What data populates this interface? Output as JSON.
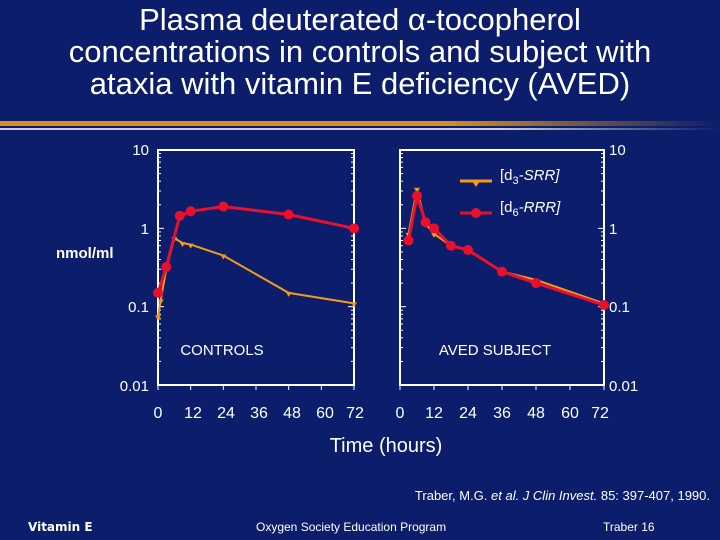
{
  "title": {
    "line1_pre": "Plasma deuterated ",
    "alpha": "α",
    "line1_post": "-tocopherol",
    "line2": "concentrations in controls and subject with",
    "line3": "ataxia with vitamin E deficiency (AVED)"
  },
  "chart_data": [
    {
      "type": "line",
      "panel": "CONTROLS",
      "panel_label": "CONTROLS",
      "xlabel": "Time (hours)",
      "ylabel": "nmol/ml",
      "yscale": "log",
      "ylim": [
        0.01,
        10
      ],
      "xlim": [
        0,
        72
      ],
      "x_ticks": [
        "0",
        "12",
        "24",
        "36",
        "48",
        "60",
        "72"
      ],
      "y_ticks": [
        "10",
        "1",
        "0.1",
        "0.01"
      ],
      "series": [
        {
          "name": "[d3-SRR]",
          "color": "#f29b1c",
          "points": [
            [
              0,
              0.075
            ],
            [
              1,
              0.12
            ],
            [
              3,
              0.3
            ],
            [
              6,
              0.75
            ],
            [
              9,
              0.65
            ],
            [
              12,
              0.62
            ],
            [
              24,
              0.45
            ],
            [
              48,
              0.15
            ],
            [
              72,
              0.11
            ]
          ]
        },
        {
          "name": "[d6-RRR]",
          "color": "#e8102d",
          "points": [
            [
              0,
              0.15
            ],
            [
              3,
              0.32
            ],
            [
              8,
              1.45
            ],
            [
              12,
              1.65
            ],
            [
              24,
              1.9
            ],
            [
              48,
              1.5
            ],
            [
              72,
              1.0
            ]
          ]
        }
      ]
    },
    {
      "type": "line",
      "panel": "AVED SUBJECT",
      "panel_label": "AVED SUBJECT",
      "xlabel": "Time (hours)",
      "ylabel": "nmol/ml",
      "yscale": "log",
      "ylim": [
        0.01,
        10
      ],
      "xlim": [
        0,
        72
      ],
      "x_ticks": [
        "0",
        "12",
        "24",
        "36",
        "48",
        "60",
        "72"
      ],
      "y_ticks": [
        "10",
        "1",
        "0.1",
        "0.01"
      ],
      "series": [
        {
          "name": "[d3-SRR]",
          "color": "#f29b1c",
          "points": [
            [
              3,
              0.85
            ],
            [
              6,
              3.2
            ],
            [
              9,
              1.15
            ],
            [
              12,
              0.85
            ],
            [
              18,
              0.6
            ],
            [
              24,
              0.52
            ],
            [
              36,
              0.28
            ],
            [
              48,
              0.22
            ],
            [
              72,
              0.11
            ]
          ]
        },
        {
          "name": "[d6-RRR]",
          "color": "#e8102d",
          "points": [
            [
              3,
              0.7
            ],
            [
              6,
              2.6
            ],
            [
              9,
              1.2
            ],
            [
              12,
              1.0
            ],
            [
              18,
              0.6
            ],
            [
              24,
              0.53
            ],
            [
              36,
              0.28
            ],
            [
              48,
              0.2
            ],
            [
              72,
              0.105
            ]
          ]
        }
      ]
    }
  ],
  "legend": {
    "d3_pre": "[d",
    "d3_sub": "3",
    "d3_post": "-SRR]",
    "d6_pre": "[d",
    "d6_sub": "6",
    "d6_post": "-RRR]"
  },
  "citation": {
    "pre": "Traber, M.G. ",
    "etal": "et al. J Clin Invest.",
    "post": " 85: 397-407, 1990."
  },
  "footer": {
    "left": "Vitamin E",
    "center": "Oxygen Society Education Program",
    "right": "Traber 16"
  },
  "colors": {
    "background": "#0b1d6b",
    "accent": "#d68f1a",
    "d3_line": "#f29b1c",
    "d6_line": "#e8102d"
  }
}
